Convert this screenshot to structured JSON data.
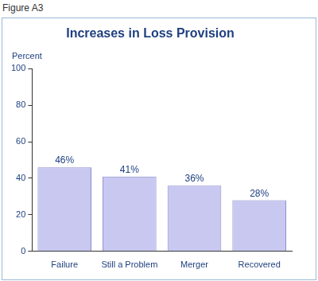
{
  "caption": "Figure A3",
  "chart_data": {
    "type": "bar",
    "title": "Increases in Loss Provision",
    "ylabel": "Percent",
    "categories": [
      "Failure",
      "Still a Problem",
      "Merger",
      "Recovered"
    ],
    "values": [
      46,
      41,
      36,
      28
    ],
    "value_labels": [
      "46%",
      "41%",
      "36%",
      "28%"
    ],
    "data_labels": true,
    "color": "#c8c8f0",
    "ylim": [
      0,
      100
    ],
    "yticks": [
      0,
      20,
      40,
      60,
      80,
      100
    ],
    "grid": false
  }
}
